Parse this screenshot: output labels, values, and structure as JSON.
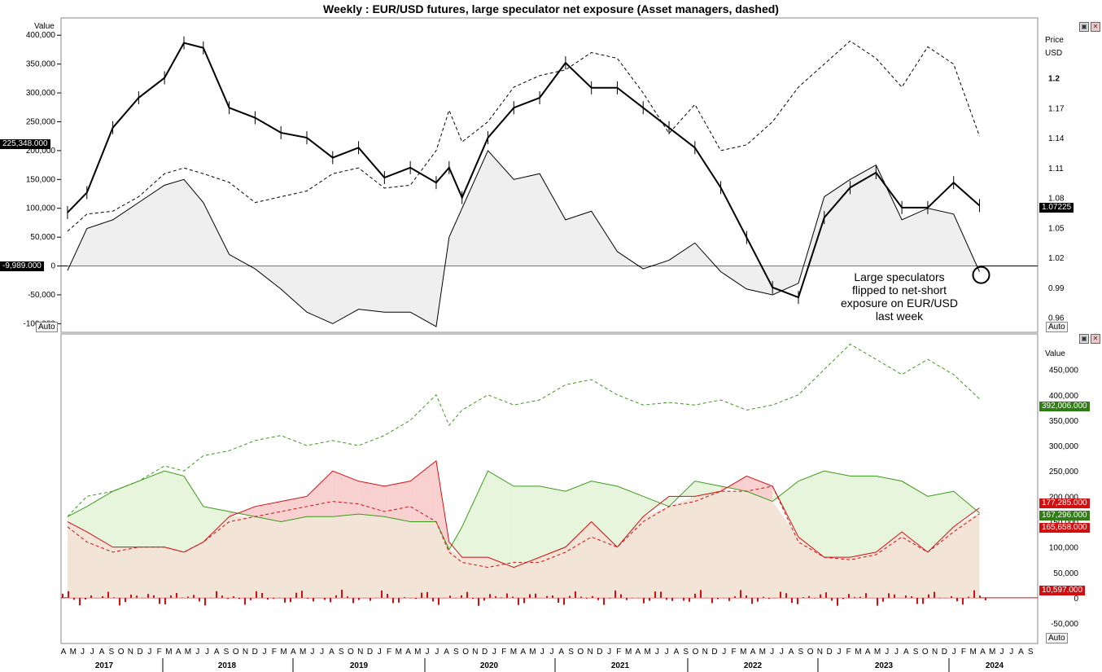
{
  "title": "Weekly : EUR/USD futures, large speculator net exposure (Asset managers, dashed)",
  "annotation": [
    "Large speculators",
    "flipped to net-short",
    "exposure on EUR/USD",
    "last week"
  ],
  "window_buttons": {
    "restore": "▣",
    "close": "✕"
  },
  "auto_label": "Auto",
  "colors": {
    "price": "#000000",
    "spec": "#000000",
    "green": "#3b9a1a",
    "red": "#d01010",
    "green_fill": "#e6f5dc",
    "red_fill": "#f8d0d0",
    "tan_fill": "#f2e4d6",
    "badge_black": "#000000",
    "badge_green": "#2f7d14",
    "badge_red": "#d01010"
  },
  "chart_data": [
    {
      "type": "line",
      "title": "Weekly : EUR/USD futures, large speculator net exposure (Asset managers, dashed)",
      "left_axis": {
        "label": "Value",
        "ticks": [
          "400,000",
          "350,000",
          "300,000",
          "250,000",
          "200,000",
          "150,000",
          "100,000",
          "50,000",
          "0",
          "-50,000",
          "-100,000"
        ],
        "ylim": [
          -115000,
          430000
        ]
      },
      "right_axis": {
        "label_line1": "Price",
        "label_line2": "USD",
        "ticks": [
          "1.2",
          "1.17",
          "1.14",
          "1.11",
          "1.08",
          "1.05",
          "1.02",
          "0.99",
          "0.96"
        ],
        "ylim": [
          0.945,
          1.26
        ]
      },
      "badges": {
        "asset_managers": "225,348.000",
        "large_speculators": "-9,989.000",
        "price": "1.07225"
      },
      "x": [
        2017.25,
        2017.4,
        2017.6,
        2017.8,
        2018.0,
        2018.15,
        2018.3,
        2018.5,
        2018.7,
        2018.9,
        2019.1,
        2019.3,
        2019.5,
        2019.7,
        2019.9,
        2020.1,
        2020.2,
        2020.3,
        2020.5,
        2020.7,
        2020.9,
        2021.1,
        2021.3,
        2021.5,
        2021.7,
        2021.9,
        2022.1,
        2022.3,
        2022.5,
        2022.7,
        2022.9,
        2023.1,
        2023.3,
        2023.5,
        2023.7,
        2023.9,
        2024.1,
        2024.3
      ],
      "series": [
        {
          "values": [
            1.065,
            1.085,
            1.15,
            1.18,
            1.2,
            1.235,
            1.23,
            1.17,
            1.16,
            1.145,
            1.14,
            1.12,
            1.13,
            1.1,
            1.11,
            1.095,
            1.11,
            1.08,
            1.14,
            1.17,
            1.18,
            1.215,
            1.19,
            1.19,
            1.17,
            1.15,
            1.13,
            1.09,
            1.04,
            0.99,
            0.98,
            1.06,
            1.09,
            1.105,
            1.07,
            1.07,
            1.095,
            1.072
          ]
        },
        {
          "values": [
            -8000,
            65000,
            80000,
            110000,
            140000,
            150000,
            110000,
            20000,
            -5000,
            -40000,
            -80000,
            -100000,
            -75000,
            -80000,
            -80000,
            -105000,
            50000,
            100000,
            200000,
            150000,
            160000,
            80000,
            95000,
            25000,
            -5000,
            10000,
            40000,
            -10000,
            -40000,
            -50000,
            -30000,
            120000,
            150000,
            175000,
            80000,
            100000,
            90000,
            -10000
          ]
        },
        {
          "dashed": true,
          "values": [
            60000,
            90000,
            95000,
            120000,
            160000,
            170000,
            160000,
            145000,
            110000,
            120000,
            130000,
            160000,
            170000,
            135000,
            140000,
            200000,
            270000,
            215000,
            250000,
            310000,
            330000,
            340000,
            370000,
            360000,
            300000,
            230000,
            280000,
            200000,
            210000,
            250000,
            310000,
            350000,
            390000,
            360000,
            310000,
            380000,
            350000,
            225000
          ]
        }
      ]
    },
    {
      "type": "area",
      "right_axis": {
        "label": "Value",
        "ticks": [
          "450,000",
          "400,000",
          "350,000",
          "300,000",
          "250,000",
          "200,000",
          "150,000",
          "100,000",
          "50,000",
          "0",
          "-50,000"
        ],
        "ylim": [
          -90000,
          520000
        ]
      },
      "badges": {
        "long_positions": "392,006.000",
        "net_red": "177,285.000",
        "open_interest": "167,296.000",
        "short_red": "165,658.000",
        "weekly_change": "10,597.000"
      },
      "x_axis": {
        "months": [
          "A",
          "M",
          "J",
          "J",
          "A",
          "S",
          "O",
          "N",
          "D",
          "J",
          "F",
          "M",
          "A",
          "M",
          "J",
          "J",
          "A",
          "S",
          "O",
          "N",
          "D",
          "J",
          "F",
          "M",
          "A",
          "M",
          "J",
          "J",
          "A",
          "S",
          "O",
          "N",
          "D",
          "J",
          "F",
          "M",
          "A",
          "M",
          "J",
          "J",
          "A",
          "S",
          "O",
          "N",
          "D",
          "J",
          "F",
          "M",
          "A",
          "M",
          "J",
          "J",
          "A",
          "S",
          "O",
          "N",
          "D",
          "J",
          "F",
          "M",
          "A",
          "M",
          "J",
          "J",
          "A",
          "S",
          "O",
          "N",
          "D",
          "J",
          "F",
          "M",
          "A",
          "M",
          "J",
          "J",
          "A",
          "S",
          "O",
          "N",
          "D",
          "J",
          "F",
          "M",
          "A",
          "M",
          "J",
          "J",
          "A",
          "S",
          "O",
          "N",
          "D",
          "J",
          "F",
          "M",
          "A",
          "M",
          "J",
          "J",
          "A",
          "S"
        ],
        "years": [
          "2017",
          "2018",
          "2019",
          "2020",
          "2021",
          "2022",
          "2023",
          "2024"
        ]
      },
      "x": [
        2017.25,
        2017.4,
        2017.6,
        2017.8,
        2018.0,
        2018.15,
        2018.3,
        2018.5,
        2018.7,
        2018.9,
        2019.1,
        2019.3,
        2019.5,
        2019.7,
        2019.9,
        2020.1,
        2020.2,
        2020.3,
        2020.5,
        2020.7,
        2020.9,
        2021.1,
        2021.3,
        2021.5,
        2021.7,
        2021.9,
        2022.1,
        2022.3,
        2022.5,
        2022.7,
        2022.9,
        2023.1,
        2023.3,
        2023.5,
        2023.7,
        2023.9,
        2024.1,
        2024.3
      ],
      "series": [
        {
          "dashed": true,
          "color": "green",
          "values": [
            160000,
            200000,
            210000,
            230000,
            260000,
            250000,
            280000,
            290000,
            310000,
            320000,
            300000,
            310000,
            300000,
            320000,
            350000,
            400000,
            340000,
            370000,
            400000,
            380000,
            390000,
            420000,
            430000,
            400000,
            380000,
            385000,
            380000,
            390000,
            370000,
            380000,
            400000,
            450000,
            500000,
            470000,
            440000,
            470000,
            440000,
            392006
          ]
        },
        {
          "color": "green",
          "values": [
            160000,
            180000,
            210000,
            230000,
            250000,
            240000,
            180000,
            170000,
            160000,
            150000,
            160000,
            160000,
            165000,
            160000,
            150000,
            150000,
            95000,
            140000,
            250000,
            220000,
            220000,
            210000,
            230000,
            220000,
            200000,
            180000,
            230000,
            220000,
            210000,
            190000,
            230000,
            250000,
            240000,
            240000,
            230000,
            200000,
            210000,
            167296
          ]
        },
        {
          "color": "red",
          "values": [
            150000,
            130000,
            100000,
            100000,
            100000,
            90000,
            110000,
            160000,
            180000,
            190000,
            200000,
            250000,
            230000,
            220000,
            230000,
            270000,
            110000,
            80000,
            80000,
            60000,
            80000,
            100000,
            150000,
            100000,
            160000,
            200000,
            200000,
            210000,
            240000,
            220000,
            120000,
            80000,
            80000,
            90000,
            130000,
            90000,
            140000,
            177285
          ]
        },
        {
          "dashed": true,
          "color": "red",
          "values": [
            140000,
            110000,
            90000,
            100000,
            100000,
            90000,
            110000,
            150000,
            160000,
            170000,
            180000,
            190000,
            185000,
            170000,
            180000,
            150000,
            90000,
            70000,
            60000,
            70000,
            70000,
            90000,
            120000,
            100000,
            150000,
            180000,
            190000,
            210000,
            210000,
            220000,
            110000,
            80000,
            75000,
            85000,
            120000,
            90000,
            130000,
            165658
          ]
        }
      ]
    }
  ]
}
